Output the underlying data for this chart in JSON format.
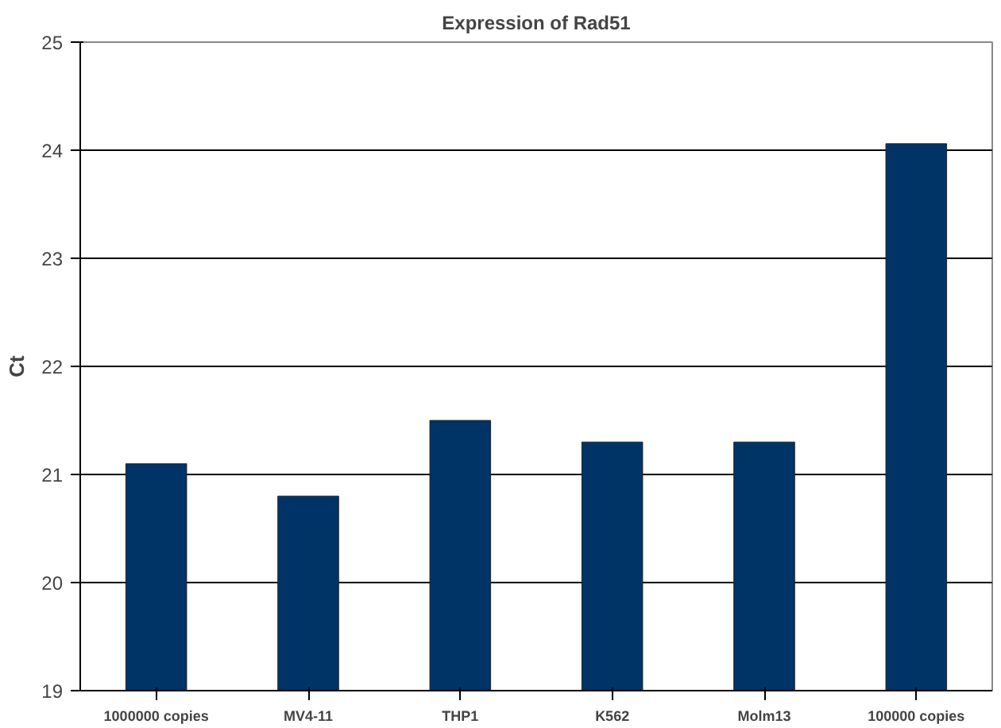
{
  "chart_data": {
    "type": "bar",
    "title": "Expression of Rad51",
    "ylabel": "Ct",
    "categories": [
      "1000000 copies",
      "MV4-11",
      "THP1",
      "K562",
      "Molm13",
      "100000 copies"
    ],
    "values": [
      21.1,
      20.8,
      21.5,
      21.3,
      21.3,
      24.06
    ],
    "color": "#003366",
    "ylim": [
      19,
      25
    ],
    "yticks": [
      19,
      20,
      21,
      22,
      23,
      24,
      25
    ],
    "grid": "y"
  }
}
